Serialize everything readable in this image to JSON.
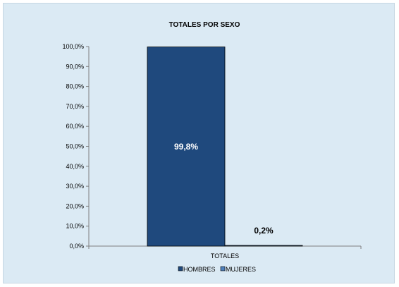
{
  "chart_data": {
    "type": "bar",
    "title": "TOTALES  POR SEXO",
    "categories": [
      "TOTALES"
    ],
    "series": [
      {
        "name": "HOMBRES",
        "values": [
          99.8
        ],
        "label": "99,8%",
        "color": "#1f497d",
        "label_color": "#ffffff"
      },
      {
        "name": "MUJERES",
        "values": [
          0.2
        ],
        "label": "0,2%",
        "color": "#4f81bd",
        "label_color": "#000000"
      }
    ],
    "ylim": [
      0,
      100
    ],
    "y_ticks": [
      0,
      10,
      20,
      30,
      40,
      50,
      60,
      70,
      80,
      90,
      100
    ],
    "y_tick_labels": [
      "0,0%",
      "10,0%",
      "20,0%",
      "30,0%",
      "40,0%",
      "50,0%",
      "60,0%",
      "70,0%",
      "80,0%",
      "90,0%",
      "100,0%"
    ],
    "grid": false,
    "legend_position": "bottom",
    "colors": {
      "background": "#dbeaf4",
      "axis": "#7f7f7f"
    }
  }
}
